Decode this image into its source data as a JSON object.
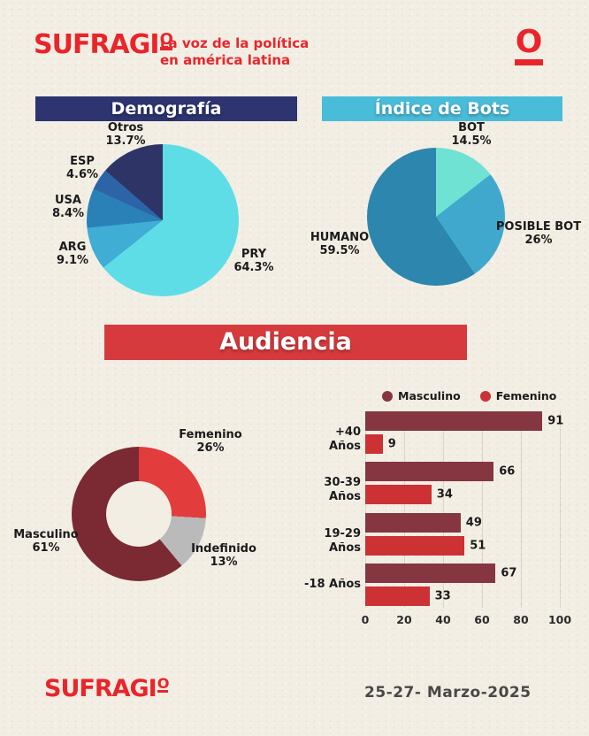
{
  "header": {
    "logo_text": "SUFRAGI",
    "logo_o": "O",
    "tagline_line1": "La voz de la política",
    "tagline_line2": "en américa latina",
    "brand_icon": "O"
  },
  "sections": {
    "demografia": {
      "title": "Demografía",
      "color": "#2d3470"
    },
    "bots": {
      "title": "Índice de Bots",
      "color": "#49bcd9"
    },
    "audiencia": {
      "title": "Audiencia",
      "color": "#d63a3c"
    }
  },
  "chart_data": [
    {
      "type": "pie",
      "title": "Demografía",
      "slices": [
        {
          "label": "PRY",
          "value": 64.3,
          "pct": "64.3%",
          "color": "#5fdde6"
        },
        {
          "label": "ARG",
          "value": 9.1,
          "pct": "9.1%",
          "color": "#3fadd4"
        },
        {
          "label": "USA",
          "value": 8.4,
          "pct": "8.4%",
          "color": "#2a81b8"
        },
        {
          "label": "ESP",
          "value": 4.6,
          "pct": "4.6%",
          "color": "#2d64a8"
        },
        {
          "label": "Otros",
          "value": 13.7,
          "pct": "13.7%",
          "color": "#2e3566"
        }
      ]
    },
    {
      "type": "pie",
      "title": "Índice de Bots",
      "slices": [
        {
          "label": "BOT",
          "value": 14.5,
          "pct": "14.5%",
          "color": "#6fe2d4"
        },
        {
          "label": "POSIBLE BOT",
          "value": 26,
          "pct": "26%",
          "color": "#41a8cd"
        },
        {
          "label": "HUMANO",
          "value": 59.5,
          "pct": "59.5%",
          "color": "#2d86ae"
        }
      ]
    },
    {
      "type": "pie",
      "subtype": "donut",
      "title": "Audiencia",
      "slices": [
        {
          "label": "Femenino",
          "value": 26,
          "pct": "26%",
          "color": "#e23c3c"
        },
        {
          "label": "Indefinido",
          "value": 13,
          "pct": "13%",
          "color": "#b9bab9"
        },
        {
          "label": "Masculino",
          "value": 61,
          "pct": "61%",
          "color": "#7b2932"
        }
      ]
    },
    {
      "type": "bar",
      "orientation": "horizontal",
      "title": "Audiencia",
      "categories": [
        "+40 Años",
        "30-39 Años",
        "19-29 Años",
        "-18 Años"
      ],
      "series": [
        {
          "name": "Masculino",
          "color": "#853640",
          "values": [
            91,
            66,
            49,
            67
          ]
        },
        {
          "name": "Femenino",
          "color": "#cc3134",
          "values": [
            9,
            34,
            51,
            33
          ]
        }
      ],
      "xlim": [
        0,
        100
      ],
      "xticks": [
        0,
        20,
        40,
        60,
        80,
        100
      ],
      "grid": true,
      "legend_position": "top"
    }
  ],
  "footer": {
    "logo_text": "SUFRAGI",
    "logo_o": "O",
    "date": "25-27- Marzo-2025"
  }
}
